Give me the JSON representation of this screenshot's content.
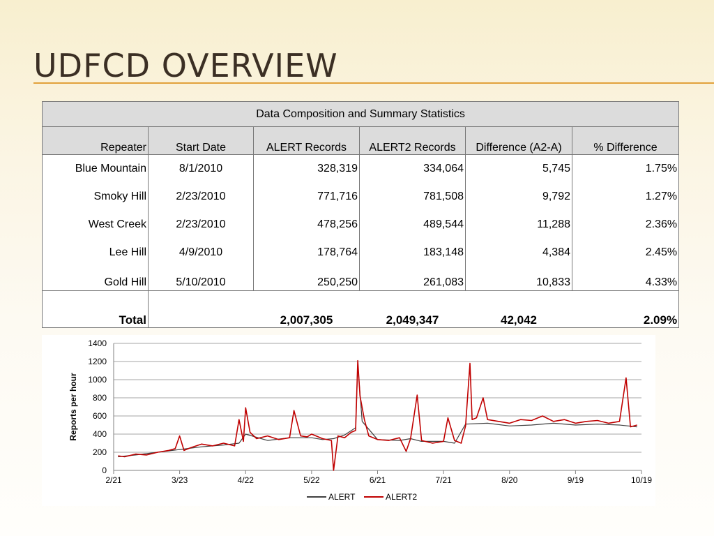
{
  "slide": {
    "title": "UDFCD OVERVIEW"
  },
  "table": {
    "caption": "Data Composition and Summary Statistics",
    "headers": [
      "Repeater",
      "Start Date",
      "ALERT Records",
      "ALERT2 Records",
      "Difference (A2-A)",
      "% Difference"
    ],
    "rows": [
      [
        "Blue Mountain",
        "8/1/2010",
        "328,319",
        "334,064",
        "5,745",
        "1.75%"
      ],
      [
        "Smoky Hill",
        "2/23/2010",
        "771,716",
        "781,508",
        "9,792",
        "1.27%"
      ],
      [
        "West Creek",
        "2/23/2010",
        "478,256",
        "489,544",
        "11,288",
        "2.36%"
      ],
      [
        "Lee Hill",
        "4/9/2010",
        "178,764",
        "183,148",
        "4,384",
        "2.45%"
      ],
      [
        "Gold Hill",
        "5/10/2010",
        "250,250",
        "261,083",
        "10,833",
        "4.33%"
      ]
    ],
    "total": {
      "label": "Total",
      "alert": "2,007,305",
      "alert2": "2,049,347",
      "difference": "42,042",
      "pct": "2.09%"
    }
  },
  "chart_data": {
    "type": "line",
    "title": "",
    "xlabel": "",
    "ylabel": "Reports per hour",
    "ylim": [
      0,
      1400
    ],
    "yticks": [
      0,
      200,
      400,
      600,
      800,
      1000,
      1200,
      1400
    ],
    "x_tick_labels": [
      "2/21",
      "3/23",
      "4/22",
      "5/22",
      "6/21",
      "7/21",
      "8/20",
      "9/19",
      "10/19"
    ],
    "x_tick_day_offsets": [
      0,
      30,
      60,
      90,
      120,
      150,
      180,
      210,
      240
    ],
    "grid": true,
    "legend_position": "bottom",
    "series": [
      {
        "name": "ALERT",
        "color": "#404040",
        "x_day_offsets": [
          2,
          10,
          20,
          30,
          40,
          50,
          57,
          60,
          70,
          80,
          90,
          95,
          100,
          105,
          110,
          111,
          113,
          120,
          130,
          135,
          140,
          150,
          155,
          160,
          170,
          180,
          190,
          200,
          210,
          220,
          230,
          238
        ],
        "values": [
          150,
          170,
          200,
          230,
          260,
          280,
          300,
          400,
          330,
          360,
          360,
          340,
          350,
          390,
          470,
          1170,
          540,
          340,
          330,
          350,
          320,
          320,
          300,
          510,
          520,
          490,
          500,
          520,
          500,
          510,
          500,
          480
        ]
      },
      {
        "name": "ALERT2",
        "color": "#c00000",
        "x_day_offsets": [
          2,
          5,
          10,
          15,
          20,
          25,
          28,
          30,
          32,
          35,
          40,
          45,
          50,
          55,
          57,
          59,
          60,
          62,
          65,
          70,
          75,
          80,
          82,
          85,
          88,
          90,
          95,
          99,
          100,
          102,
          105,
          108,
          110,
          111,
          112,
          114,
          116,
          120,
          125,
          130,
          133,
          135,
          138,
          140,
          145,
          150,
          152,
          155,
          158,
          160,
          162,
          163,
          165,
          168,
          170,
          175,
          180,
          185,
          190,
          195,
          200,
          205,
          210,
          215,
          220,
          225,
          230,
          233,
          235,
          238
        ],
        "values": [
          160,
          150,
          180,
          170,
          200,
          220,
          240,
          380,
          220,
          250,
          290,
          270,
          300,
          270,
          560,
          320,
          690,
          420,
          350,
          380,
          340,
          360,
          660,
          380,
          370,
          400,
          350,
          330,
          0,
          380,
          360,
          420,
          440,
          1210,
          820,
          560,
          380,
          340,
          330,
          360,
          210,
          350,
          830,
          330,
          300,
          320,
          580,
          330,
          300,
          490,
          1180,
          560,
          580,
          800,
          560,
          540,
          520,
          560,
          550,
          600,
          540,
          560,
          520,
          540,
          550,
          520,
          540,
          1020,
          480,
          500
        ]
      }
    ]
  }
}
